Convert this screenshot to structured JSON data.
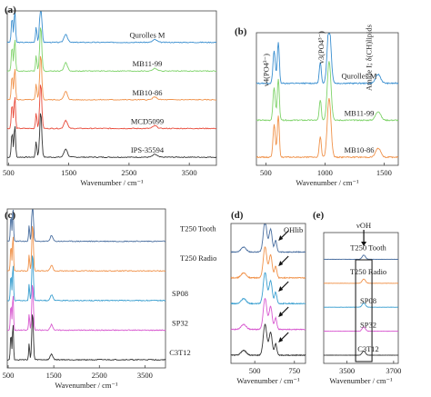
{
  "chart_data": [
    {
      "panel": "(a)",
      "type": "line",
      "xlabel": "Wavenumber / cm⁻¹",
      "xlim": [
        480,
        3950
      ],
      "xticks": [
        500,
        1500,
        2500,
        3500
      ],
      "series": [
        {
          "name": "Qurolles M",
          "color": "#3a8fd0"
        },
        {
          "name": "MB11-99",
          "color": "#7fd36a"
        },
        {
          "name": "MB10-86",
          "color": "#f0924a"
        },
        {
          "name": "MCD5099",
          "color": "#e84a3a"
        },
        {
          "name": "IPS-35594",
          "color": "#333333"
        }
      ]
    },
    {
      "panel": "(b)",
      "type": "line",
      "xlabel": "Wavenumber / cm⁻¹",
      "xlim": [
        420,
        1620
      ],
      "xticks": [
        500,
        1000,
        1500
      ],
      "annotations": [
        "ν4(PO4³⁻)",
        "ν3(PO4³⁻)",
        "Amide I; δ(CH)lipids"
      ],
      "series": [
        {
          "name": "Qurolles M",
          "color": "#3a8fd0"
        },
        {
          "name": "MB11-99",
          "color": "#7fd36a"
        },
        {
          "name": "MB10-86",
          "color": "#f0924a"
        }
      ]
    },
    {
      "panel": "(c)",
      "type": "line",
      "xlabel": "Wavenumber / cm⁻¹",
      "xlim": [
        480,
        3950
      ],
      "xticks": [
        500,
        1500,
        2500,
        3500
      ],
      "series": [
        {
          "name": "T250 Tooth",
          "color": "#4a6fa0"
        },
        {
          "name": "T250 Radio",
          "color": "#f0924a"
        },
        {
          "name": "SP08",
          "color": "#3a9fd0"
        },
        {
          "name": "SP32",
          "color": "#d85ad0"
        },
        {
          "name": "C3T12",
          "color": "#333333"
        }
      ]
    },
    {
      "panel": "(d)",
      "type": "line",
      "xlabel": "Wavenumber / cm⁻¹",
      "xlim": [
        350,
        820
      ],
      "xticks": [
        500,
        750
      ],
      "annotations": [
        "OHlib"
      ],
      "series": [
        {
          "name": "T250 Tooth",
          "color": "#4a6fa0"
        },
        {
          "name": "T250 Radio",
          "color": "#f0924a"
        },
        {
          "name": "SP08",
          "color": "#3a9fd0"
        },
        {
          "name": "SP32",
          "color": "#d85ad0"
        },
        {
          "name": "C3T12",
          "color": "#333333"
        }
      ]
    },
    {
      "panel": "(e)",
      "type": "line",
      "xlabel": "Wavenumber / cm⁻¹",
      "xlim": [
        3400,
        3720
      ],
      "xticks": [
        3500,
        3700
      ],
      "annotations": [
        "νOH"
      ],
      "series": [
        {
          "name": "T250 Tooth",
          "color": "#4a6fa0"
        },
        {
          "name": "T250 Radio",
          "color": "#f0924a"
        },
        {
          "name": "SP08",
          "color": "#3a9fd0"
        },
        {
          "name": "SP32",
          "color": "#d85ad0"
        },
        {
          "name": "C3T12",
          "color": "#333333"
        }
      ]
    }
  ]
}
